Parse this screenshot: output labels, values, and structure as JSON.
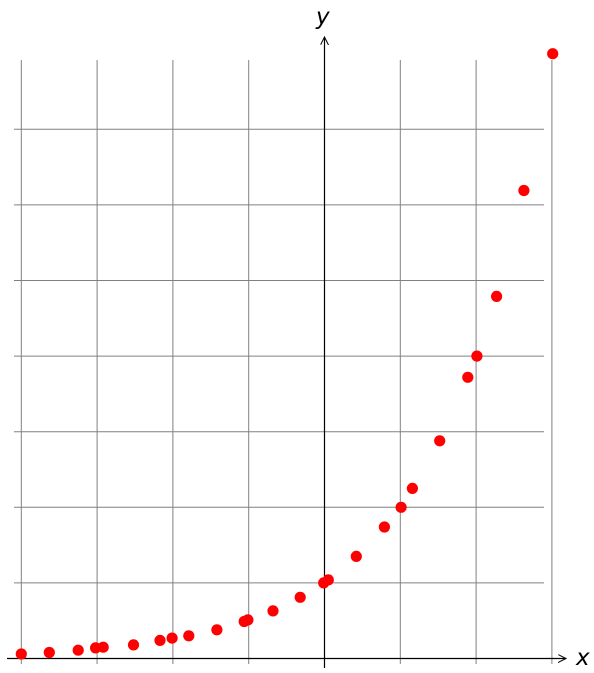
{
  "chart_data": {
    "type": "scatter",
    "title": "",
    "xlabel": "x",
    "ylabel": "y",
    "xlim": [
      -4.0,
      3.3
    ],
    "ylim": [
      -0.1,
      7.9
    ],
    "grid": true,
    "legend": "none",
    "tick_labels": "none",
    "grid_x": [
      -4,
      -3,
      -2,
      -1,
      0,
      1,
      2,
      3
    ],
    "grid_y": [
      0,
      1,
      2,
      3,
      4,
      5,
      6,
      7
    ],
    "series": [
      {
        "color": "#ff0000",
        "points": [
          [
            -4.0,
            0.06
          ],
          [
            -3.63,
            0.08
          ],
          [
            -3.25,
            0.11
          ],
          [
            -3.02,
            0.14
          ],
          [
            -2.92,
            0.15
          ],
          [
            -2.52,
            0.18
          ],
          [
            -2.17,
            0.24
          ],
          [
            -2.01,
            0.27
          ],
          [
            -1.79,
            0.3
          ],
          [
            -1.42,
            0.38
          ],
          [
            -1.06,
            0.49
          ],
          [
            -1.01,
            0.51
          ],
          [
            -0.68,
            0.63
          ],
          [
            -0.32,
            0.81
          ],
          [
            -0.01,
            1.0
          ],
          [
            0.05,
            1.04
          ],
          [
            0.42,
            1.35
          ],
          [
            0.79,
            1.74
          ],
          [
            1.01,
            2.0
          ],
          [
            1.16,
            2.25
          ],
          [
            1.52,
            2.88
          ],
          [
            1.89,
            3.72
          ],
          [
            2.01,
            4.0
          ],
          [
            2.27,
            4.79
          ],
          [
            2.63,
            6.19
          ],
          [
            3.01,
            8.0
          ]
        ]
      }
    ]
  }
}
